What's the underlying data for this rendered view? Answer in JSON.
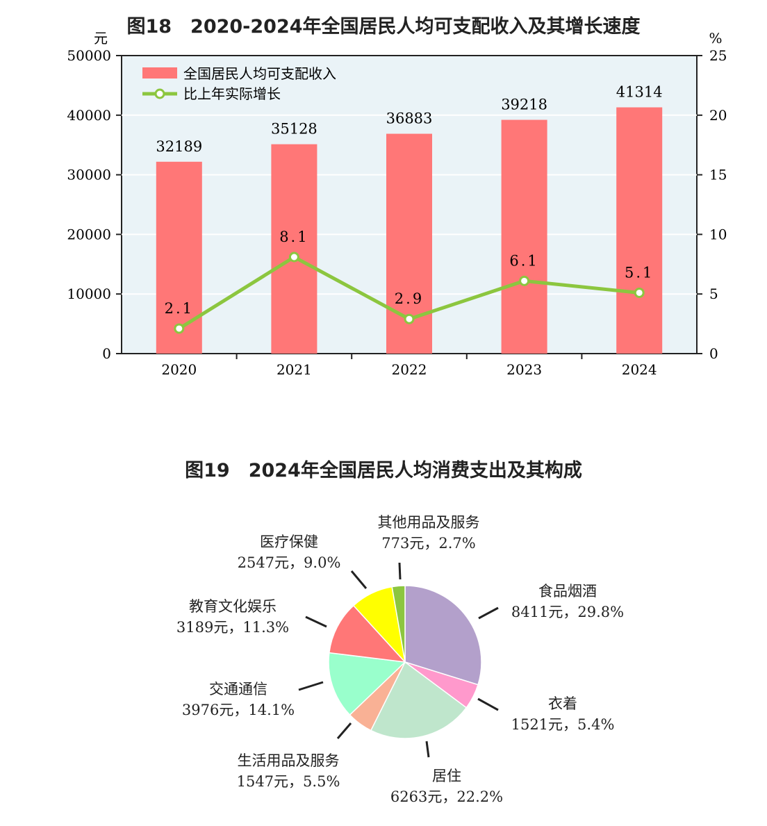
{
  "chart_data": [
    {
      "type": "bar+line",
      "title": "图18　2020-2024年全国居民人均可支配收入及其增长速度",
      "categories": [
        "2020",
        "2021",
        "2022",
        "2023",
        "2024"
      ],
      "series": [
        {
          "name": "全国居民人均可支配收入",
          "type": "bar",
          "axis": "left",
          "values": [
            32189,
            35128,
            36883,
            39218,
            41314
          ],
          "color": "#ff7777"
        },
        {
          "name": "比上年实际增长",
          "type": "line",
          "axis": "right",
          "values": [
            2.1,
            8.1,
            2.9,
            6.1,
            5.1
          ],
          "color": "#8cc63f"
        }
      ],
      "ylabel": "元",
      "ylim": [
        0,
        50000
      ],
      "yticks": [
        "0",
        "10000",
        "20000",
        "30000",
        "40000",
        "50000"
      ],
      "y2label": "%",
      "y2lim": [
        0,
        25
      ],
      "y2ticks": [
        "0",
        "5",
        "10",
        "15",
        "20",
        "25"
      ],
      "legend": "top-left",
      "background": "#eaf3f7"
    },
    {
      "type": "pie",
      "title": "图19　2024年全国居民人均消费支出及其构成",
      "slices": [
        {
          "name": "食品烟酒",
          "value": 8411,
          "percent": 29.8,
          "label": "8411元，29.8%",
          "color": "#b3a0cb"
        },
        {
          "name": "衣着",
          "value": 1521,
          "percent": 5.4,
          "label": "1521元，5.4%",
          "color": "#ff99cc"
        },
        {
          "name": "居住",
          "value": 6263,
          "percent": 22.2,
          "label": "6263元，22.2%",
          "color": "#bfe6cc"
        },
        {
          "name": "生活用品及服务",
          "value": 1547,
          "percent": 5.5,
          "label": "1547元，5.5%",
          "color": "#f9b195"
        },
        {
          "name": "交通通信",
          "value": 3976,
          "percent": 14.1,
          "label": "3976元，14.1%",
          "color": "#99ffcc"
        },
        {
          "name": "教育文化娱乐",
          "value": 3189,
          "percent": 11.3,
          "label": "3189元，11.3%",
          "color": "#ff7777"
        },
        {
          "name": "医疗保健",
          "value": 2547,
          "percent": 9.0,
          "label": "2547元，9.0%",
          "color": "#ffff00"
        },
        {
          "name": "其他用品及服务",
          "value": 773,
          "percent": 2.7,
          "label": "773元，2.7%",
          "color": "#8cc63f"
        }
      ]
    }
  ]
}
